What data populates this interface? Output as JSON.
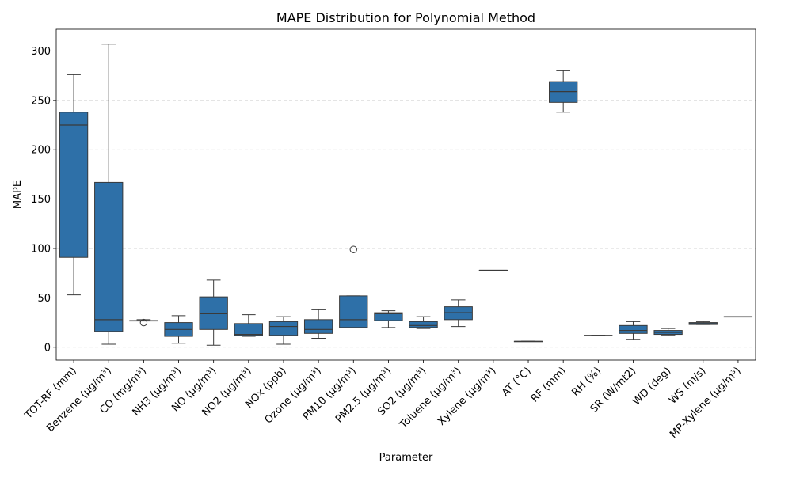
{
  "chart_data": {
    "type": "box",
    "title": "MAPE Distribution for Polynomial Method",
    "xlabel": "Parameter",
    "ylabel": "MAPE",
    "ylim": [
      -13,
      322
    ],
    "yticks": [
      0,
      50,
      100,
      150,
      200,
      250,
      300
    ],
    "grid": "y-dashed",
    "box_color": "#2e70a8",
    "categories": [
      "TOT-RF (mm)",
      "Benzene (µg/m³)",
      "CO (mg/m³)",
      "NH3 (µg/m³)",
      "NO (µg/m³)",
      "NO2 (µg/m³)",
      "NOx (ppb)",
      "Ozone (µg/m³)",
      "PM10 (µg/m³)",
      "PM2.5 (µg/m³)",
      "SO2 (µg/m³)",
      "Toluene (µg/m³)",
      "Xylene (µg/m³)",
      "AT (°C)",
      "RF (mm)",
      "RH (%)",
      "SR (W/mt2)",
      "WD (deg)",
      "WS (m/s)",
      "MP-Xylene (µg/m³)"
    ],
    "boxes": [
      {
        "whislo": 53,
        "q1": 91,
        "med": 225,
        "q3": 238,
        "whishi": 276,
        "fliers": []
      },
      {
        "whislo": 3,
        "q1": 16,
        "med": 28,
        "q3": 167,
        "whishi": 307,
        "fliers": []
      },
      {
        "whislo": 27,
        "q1": 27,
        "med": 27,
        "q3": 27,
        "whishi": 28,
        "fliers": [
          25
        ]
      },
      {
        "whislo": 4,
        "q1": 11,
        "med": 18,
        "q3": 25,
        "whishi": 32,
        "fliers": []
      },
      {
        "whislo": 2,
        "q1": 18,
        "med": 34,
        "q3": 51,
        "whishi": 68,
        "fliers": []
      },
      {
        "whislo": 11,
        "q1": 12,
        "med": 13,
        "q3": 24,
        "whishi": 33,
        "fliers": []
      },
      {
        "whislo": 3,
        "q1": 12,
        "med": 21,
        "q3": 26,
        "whishi": 31,
        "fliers": []
      },
      {
        "whislo": 9,
        "q1": 14,
        "med": 18,
        "q3": 28,
        "whishi": 38,
        "fliers": []
      },
      {
        "whislo": 20,
        "q1": 20,
        "med": 28,
        "q3": 52,
        "whishi": 52,
        "fliers": [
          99
        ]
      },
      {
        "whislo": 20,
        "q1": 27,
        "med": 34,
        "q3": 35,
        "whishi": 37,
        "fliers": []
      },
      {
        "whislo": 19,
        "q1": 20,
        "med": 22,
        "q3": 26,
        "whishi": 31,
        "fliers": []
      },
      {
        "whislo": 21,
        "q1": 28,
        "med": 35,
        "q3": 41,
        "whishi": 48,
        "fliers": []
      },
      {
        "whislo": 78,
        "q1": 78,
        "med": 78,
        "q3": 78,
        "whishi": 78,
        "fliers": []
      },
      {
        "whislo": 6,
        "q1": 6,
        "med": 6,
        "q3": 6,
        "whishi": 6,
        "fliers": []
      },
      {
        "whislo": 238,
        "q1": 248,
        "med": 259,
        "q3": 269,
        "whishi": 280,
        "fliers": []
      },
      {
        "whislo": 12,
        "q1": 12,
        "med": 12,
        "q3": 12,
        "whishi": 12,
        "fliers": []
      },
      {
        "whislo": 8,
        "q1": 14,
        "med": 17,
        "q3": 22,
        "whishi": 26,
        "fliers": []
      },
      {
        "whislo": 12,
        "q1": 13,
        "med": 15,
        "q3": 17,
        "whishi": 19,
        "fliers": []
      },
      {
        "whislo": 23,
        "q1": 23,
        "med": 24,
        "q3": 25,
        "whishi": 26,
        "fliers": []
      },
      {
        "whislo": 31,
        "q1": 31,
        "med": 31,
        "q3": 31,
        "whishi": 31,
        "fliers": []
      }
    ]
  }
}
